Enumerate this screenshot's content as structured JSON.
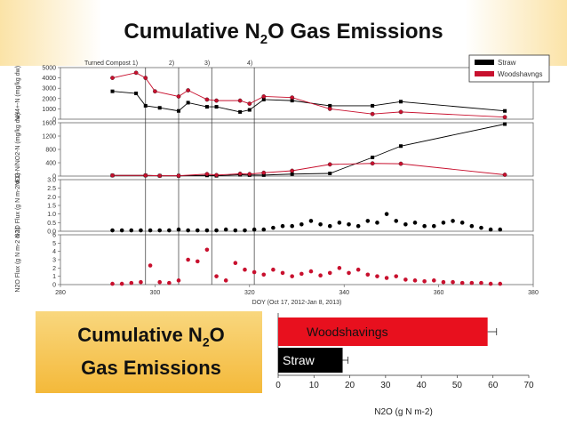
{
  "title": {
    "pre": "Cumulative N",
    "sub": "2",
    "post": "O Gas Emissions"
  },
  "side_label": {
    "line1_pre": "Cumulative N",
    "line1_sub": "2",
    "line1_post": "O",
    "line2": "Gas Emissions"
  },
  "colors": {
    "straw": "#000000",
    "woodshavings": "#c8102e",
    "bar_red": "#e8101e",
    "band": "#f4b93a"
  },
  "chart_data": [
    {
      "type": "line",
      "panel": "NH4-N",
      "ylabel": "NH4+-N (mg/kg dw)",
      "yticks": [
        "5000",
        "4000",
        "3000",
        "2000",
        "1000",
        "0"
      ],
      "ylim": [
        0,
        5000
      ],
      "xlim": [
        280,
        380
      ],
      "series": [
        {
          "name": "Straw",
          "x": [
            291,
            296,
            298,
            301,
            305,
            307,
            311,
            313,
            318,
            320,
            323,
            329,
            337,
            346,
            352,
            374
          ],
          "y": [
            2700,
            2500,
            1300,
            1100,
            800,
            1600,
            1200,
            1200,
            700,
            900,
            1900,
            1800,
            1300,
            1300,
            1700,
            800
          ]
        },
        {
          "name": "Woodshavings",
          "x": [
            291,
            296,
            298,
            300,
            305,
            307,
            311,
            313,
            318,
            320,
            323,
            329,
            337,
            346,
            352,
            374
          ],
          "y": [
            4000,
            4500,
            4000,
            2700,
            2200,
            2800,
            1900,
            1800,
            1800,
            1500,
            2200,
            2100,
            1000,
            500,
            700,
            200
          ]
        }
      ]
    },
    {
      "type": "line",
      "panel": "NO3-N",
      "ylabel": "NO3-N/NO2-N (mg/kg dw)",
      "yticks": [
        "1600",
        "1200",
        "800",
        "400",
        "0"
      ],
      "ylim": [
        0,
        1600
      ],
      "xlim": [
        280,
        380
      ],
      "series": [
        {
          "name": "Straw",
          "x": [
            291,
            298,
            301,
            305,
            311,
            313,
            318,
            320,
            323,
            329,
            337,
            346,
            352,
            374
          ],
          "y": [
            20,
            20,
            10,
            10,
            20,
            10,
            40,
            30,
            30,
            60,
            80,
            560,
            900,
            1560
          ]
        },
        {
          "name": "Woodshavings",
          "x": [
            291,
            298,
            301,
            305,
            311,
            313,
            318,
            320,
            323,
            329,
            337,
            346,
            352,
            374
          ],
          "y": [
            20,
            20,
            10,
            10,
            60,
            30,
            70,
            60,
            100,
            160,
            350,
            380,
            370,
            40
          ]
        }
      ]
    },
    {
      "type": "scatter",
      "panel": "Straw N2O Flux",
      "ylabel": "N2O Flux (g N m-2 d-1)",
      "yticks": [
        "3.0",
        "2.5",
        "2.0",
        "1.5",
        "1.0",
        "0.5",
        "0.0"
      ],
      "ylim": [
        0,
        3
      ],
      "xlim": [
        280,
        380
      ],
      "series": [
        {
          "name": "Straw",
          "x": [
            291,
            293,
            295,
            297,
            299,
            301,
            303,
            305,
            307,
            309,
            311,
            313,
            315,
            317,
            319,
            321,
            323,
            325,
            327,
            329,
            331,
            333,
            335,
            337,
            339,
            341,
            343,
            345,
            347,
            349,
            351,
            353,
            355,
            357,
            359,
            361,
            363,
            365,
            367,
            369,
            371,
            373
          ],
          "y": [
            0.05,
            0.05,
            0.05,
            0.05,
            0.05,
            0.05,
            0.05,
            0.1,
            0.05,
            0.05,
            0.05,
            0.05,
            0.1,
            0.05,
            0.05,
            0.1,
            0.1,
            0.2,
            0.3,
            0.3,
            0.4,
            0.6,
            0.4,
            0.3,
            0.5,
            0.4,
            0.3,
            0.6,
            0.5,
            1.0,
            0.6,
            0.4,
            0.5,
            0.3,
            0.3,
            0.5,
            0.6,
            0.5,
            0.3,
            0.2,
            0.1,
            0.1
          ]
        }
      ]
    },
    {
      "type": "scatter",
      "panel": "Woodshavings N2O Flux",
      "ylabel": "N2O Flux (g N m-2 d-1)",
      "yticks": [
        "6",
        "5",
        "4",
        "3",
        "2",
        "1",
        "0"
      ],
      "ylim": [
        0,
        6
      ],
      "xlim": [
        280,
        380
      ],
      "xticks": [
        "280",
        "300",
        "320",
        "340",
        "360",
        "380"
      ],
      "xlabel": "DOY (Oct 17, 2012-Jan 8, 2013)",
      "series": [
        {
          "name": "Woodshavings",
          "x": [
            291,
            293,
            295,
            297,
            299,
            301,
            303,
            305,
            307,
            309,
            311,
            313,
            315,
            317,
            319,
            321,
            323,
            325,
            327,
            329,
            331,
            333,
            335,
            337,
            339,
            341,
            343,
            345,
            347,
            349,
            351,
            353,
            355,
            357,
            359,
            361,
            363,
            365,
            367,
            369,
            371,
            373
          ],
          "y": [
            0.1,
            0.1,
            0.2,
            0.3,
            2.3,
            0.3,
            0.2,
            0.5,
            3.0,
            2.8,
            4.2,
            1.0,
            0.5,
            2.6,
            1.8,
            1.5,
            1.2,
            1.8,
            1.4,
            1.0,
            1.3,
            1.6,
            1.1,
            1.4,
            2.0,
            1.4,
            1.8,
            1.2,
            1.0,
            0.8,
            1.0,
            0.6,
            0.5,
            0.4,
            0.5,
            0.3,
            0.3,
            0.2,
            0.2,
            0.2,
            0.1,
            0.1
          ]
        }
      ]
    },
    {
      "type": "bar",
      "panel": "Cumulative",
      "orientation": "horizontal",
      "categories": [
        "Woodshavings",
        "Straw"
      ],
      "values": [
        58.5,
        18
      ],
      "errors": [
        2.5,
        1.5
      ],
      "xlim": [
        0,
        70
      ],
      "xticks": [
        "0",
        "10",
        "20",
        "30",
        "40",
        "50",
        "60",
        "70"
      ],
      "xlabel": "N2O (g N m-2)"
    }
  ],
  "legend": {
    "items": [
      "Straw",
      "Woodshavngs"
    ]
  },
  "events": {
    "labels": [
      "Turned Compost 1)",
      "2)",
      "3)",
      "4)"
    ],
    "doy": [
      298,
      305,
      312,
      321
    ]
  }
}
